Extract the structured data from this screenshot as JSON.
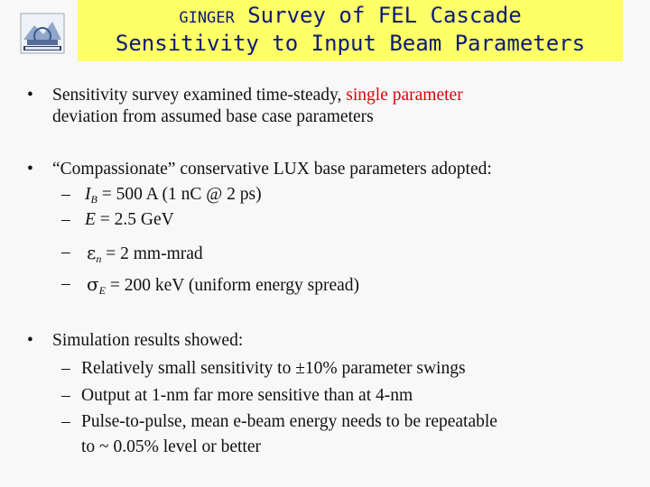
{
  "title": {
    "prefix": "GINGER",
    "line1": "Survey of FEL Cascade",
    "line2": "Sensitivity to Input Beam Parameters"
  },
  "bullets": [
    {
      "text_a": "Sensitivity survey examined time-steady, ",
      "text_highlight": "single parameter",
      "text_b": "deviation from assumed base case parameters"
    },
    {
      "text": "“Compassionate” conservative LUX base parameters adopted:",
      "items": [
        {
          "symbol": "I",
          "sub": "B",
          "text": " = 500 A (1 nC @ 2 ps)"
        },
        {
          "symbol": "E",
          "text": " = 2.5 GeV"
        },
        {
          "symbol": "ε",
          "sub": "n",
          "text": " = 2 mm-mrad"
        },
        {
          "symbol": "σ",
          "sub": "E",
          "text": " = 200 keV (uniform energy spread)"
        }
      ]
    },
    {
      "text": "Simulation results showed:",
      "items": [
        {
          "text": "Relatively small sensitivity to ±10% parameter swings"
        },
        {
          "text": "Output at 1-nm far more sensitive than at 4-nm"
        },
        {
          "text": "Pulse-to-pulse, mean e-beam energy needs to be repeatable"
        },
        {
          "text": "to ~ 0.05% level or better"
        }
      ]
    }
  ],
  "colors": {
    "title_bg": "#ffff66",
    "title_text": "#0c1a7a",
    "highlight": "#e0000a"
  }
}
